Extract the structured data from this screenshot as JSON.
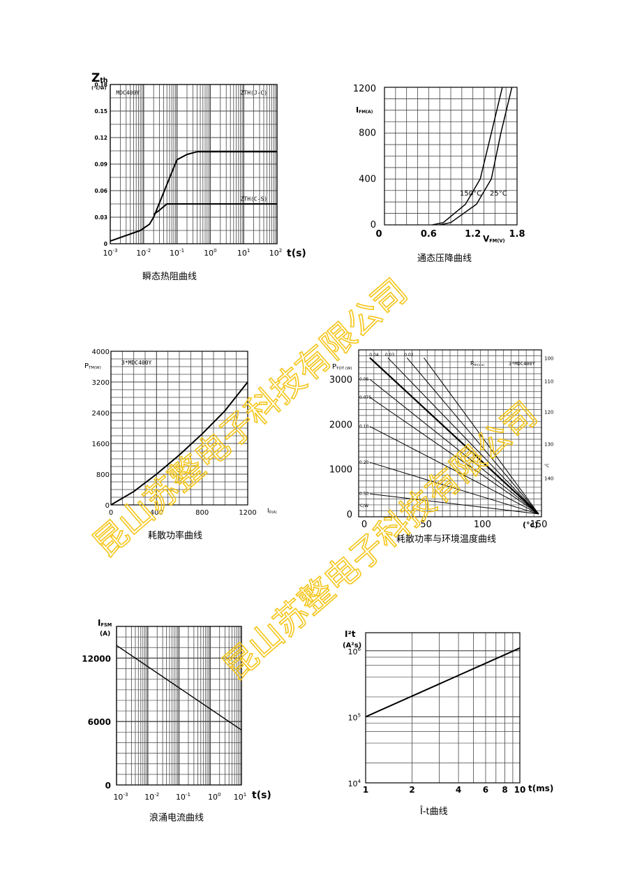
{
  "colors": {
    "ink": "#000000",
    "grid": "#444444",
    "watermark": "#f5c518"
  },
  "watermark": {
    "text": "昆山苏整电子科技有限公司",
    "copies": 2
  },
  "chart_data": [
    {
      "id": "c1",
      "type": "line",
      "caption": "瞬态热阻曲线",
      "ylabel_main": "Z",
      "ylabel_sub": "th",
      "yunit": "(°c/w)",
      "xlabel": "t(s)",
      "x_scale": "log",
      "xlim": [
        0.001,
        100
      ],
      "x_ticks": [
        {
          "b": "10",
          "e": "-3"
        },
        {
          "b": "10",
          "e": "-2"
        },
        {
          "b": "10",
          "e": "-1"
        },
        {
          "b": "10",
          "e": "0"
        },
        {
          "b": "10",
          "e": "1"
        },
        {
          "b": "10",
          "e": "2"
        }
      ],
      "ylim": [
        0,
        0.18
      ],
      "y_ticks": [
        "0",
        "0.03",
        "0.06",
        "0.09",
        "0.12",
        "0.15",
        "0.18"
      ],
      "annotations": [
        {
          "text": "MDC400Y",
          "x": 0.0015,
          "y": 0.171
        },
        {
          "text": "ZTH(J-C)",
          "x": 8,
          "y": 0.171
        },
        {
          "text": "ZTH(C-S)",
          "x": 8,
          "y": 0.051
        }
      ],
      "series": [
        {
          "label": "ZTH(J-C)",
          "x": [
            0.001,
            0.008,
            0.015,
            0.02,
            0.1,
            0.2,
            0.4,
            100
          ],
          "y": [
            0.003,
            0.015,
            0.022,
            0.03,
            0.095,
            0.101,
            0.104,
            0.104
          ]
        },
        {
          "label": "ZTH(C-S)",
          "x": [
            0.02,
            0.03,
            0.05,
            100
          ],
          "y": [
            0.033,
            0.038,
            0.045,
            0.045
          ]
        }
      ]
    },
    {
      "id": "c2",
      "type": "line",
      "caption": "通态压降曲线",
      "ylabel_main": "I",
      "ylabel_sub": "FM(A)",
      "xlabel_main": "V",
      "xlabel_sub": "FM(V)",
      "xlim": [
        0,
        1.8
      ],
      "x_ticks": [
        "0",
        "0.6",
        "1.2",
        "1.8"
      ],
      "ylim": [
        0,
        1200
      ],
      "y_ticks": [
        "0",
        "400",
        "800",
        "1200"
      ],
      "series": [
        {
          "name": "150°C",
          "x": [
            0.65,
            0.8,
            1.1,
            1.3,
            1.45,
            1.6
          ],
          "y": [
            0,
            20,
            180,
            400,
            800,
            1200
          ]
        },
        {
          "name": "25°C",
          "x": [
            0.75,
            0.9,
            1.25,
            1.45,
            1.58,
            1.73
          ],
          "y": [
            0,
            20,
            180,
            400,
            800,
            1200
          ]
        }
      ]
    },
    {
      "id": "c3",
      "type": "line",
      "caption": "耗散功率曲线",
      "ylabel_main": "P",
      "ylabel_sub": "TM(W)",
      "xlabel_main": "I",
      "xlabel_sub": "D(A)",
      "xlim": [
        0,
        1200
      ],
      "x_ticks": [
        "0",
        "400",
        "800",
        "1200"
      ],
      "ylim": [
        0,
        4000
      ],
      "y_ticks": [
        "0",
        "800",
        "1600",
        "2400",
        "3200",
        "4000"
      ],
      "annotation": "3*MDC400Y",
      "series": [
        {
          "label": "3*MDC400Y",
          "x": [
            0,
            200,
            400,
            600,
            800,
            1000,
            1200
          ],
          "y": [
            0,
            350,
            800,
            1300,
            1850,
            2450,
            3200
          ]
        }
      ]
    },
    {
      "id": "c4",
      "type": "line",
      "caption": "耗散功率与环境温度曲线",
      "ylabel_main": "P",
      "ylabel_sub": "TOT (W)",
      "xlabel": "(°c)",
      "xlim": [
        0,
        150
      ],
      "x_ticks": [
        "0",
        "50",
        "100",
        "150"
      ],
      "ylim": [
        0,
        3500
      ],
      "y_ticks": [
        "0",
        "1000",
        "2000",
        "3000"
      ],
      "right_ticks": [
        {
          "t": "100",
          "v": 3480
        },
        {
          "t": "110",
          "v": 2960
        },
        {
          "t": "120",
          "v": 2280
        },
        {
          "t": "130",
          "v": 1560
        },
        {
          "t": "140",
          "v": 800
        }
      ],
      "right_mark": "°C",
      "rth_label_main": "R",
      "rth_label_sub": "th(c-a)",
      "annotation": "3*MDC400Y",
      "unit_label": "°C/W",
      "rth_top": [
        {
          "t": "0.04",
          "x": 2
        },
        {
          "t": "0.03",
          "x": 16
        },
        {
          "t": "0.02",
          "x": 33
        }
      ],
      "rth_left": [
        {
          "t": "0.06",
          "y": 3000
        },
        {
          "t": "0.075",
          "y": 2600
        },
        {
          "t": "0.10",
          "y": 1950
        },
        {
          "t": "0.20",
          "y": 1150
        },
        {
          "t": "0.50",
          "y": 450
        }
      ],
      "lines_power": [
        {
          "from": [
            0,
            3480
          ],
          "to": [
            150,
            0
          ],
          "bold": true
        },
        {
          "from": [
            16,
            3480
          ],
          "to": [
            150,
            0
          ]
        },
        {
          "from": [
            33,
            3480
          ],
          "to": [
            150,
            0
          ]
        },
        {
          "from": [
            48,
            3480
          ],
          "to": [
            150,
            0
          ]
        },
        {
          "from": [
            0,
            3000
          ],
          "to": [
            150,
            0
          ]
        },
        {
          "from": [
            0,
            2600
          ],
          "to": [
            150,
            0
          ]
        },
        {
          "from": [
            0,
            1950
          ],
          "to": [
            150,
            0
          ]
        },
        {
          "from": [
            0,
            1150
          ],
          "to": [
            150,
            0
          ]
        },
        {
          "from": [
            0,
            450
          ],
          "to": [
            150,
            0
          ]
        }
      ]
    },
    {
      "id": "c5",
      "type": "line",
      "caption": "浪涌电流曲线",
      "ylabel_main": "I",
      "ylabel_sub": "FSM",
      "yunit": "(A)",
      "xlabel": "t(s)",
      "x_scale": "log",
      "xlim": [
        0.001,
        10
      ],
      "x_ticks": [
        {
          "b": "10",
          "e": "-3"
        },
        {
          "b": "10",
          "e": "-2"
        },
        {
          "b": "10",
          "e": "-1"
        },
        {
          "b": "10",
          "e": "0"
        },
        {
          "b": "10",
          "e": "1"
        }
      ],
      "ylim": [
        0,
        15000
      ],
      "y_ticks": [
        "0",
        "6000",
        "12000"
      ],
      "series": [
        {
          "label": "IFSM",
          "x": [
            0.001,
            10
          ],
          "y": [
            13200,
            5200
          ]
        }
      ]
    },
    {
      "id": "c6",
      "type": "line",
      "caption": "Î-t曲线",
      "ylabel_main": "I²t",
      "yunit": "(A²s)",
      "xlabel": "t(ms)",
      "x_scale": "log",
      "xlim": [
        1,
        10
      ],
      "x_ticks": [
        "1",
        "2",
        "4",
        "6",
        "8",
        "10"
      ],
      "y_scale": "log",
      "ylim": [
        10000,
        1000000
      ],
      "y_ticks": [
        {
          "b": "10",
          "e": "4"
        },
        {
          "b": "10",
          "e": "5"
        },
        {
          "b": "10",
          "e": "6"
        }
      ],
      "series": [
        {
          "label": "I²t",
          "x": [
            1,
            10
          ],
          "y": [
            100000,
            1100000
          ]
        }
      ]
    }
  ]
}
